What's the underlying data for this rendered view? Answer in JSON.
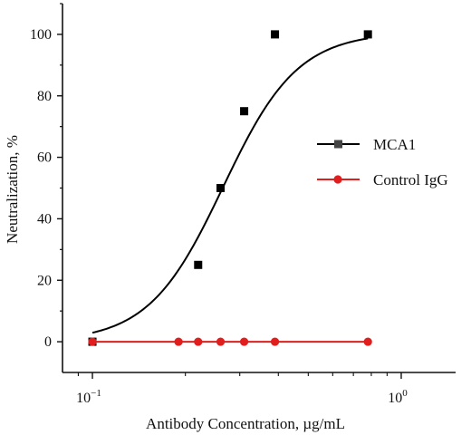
{
  "chart_data": {
    "type": "line",
    "xlabel": "Antibody Concentration, µg/mL",
    "ylabel": "Neutralization, %",
    "xscale": "log",
    "xlim": [
      0.08,
      1.5
    ],
    "ylim": [
      -10,
      110
    ],
    "x_ticks": [
      {
        "value": 0.1,
        "base": "10",
        "exp": "−1"
      },
      {
        "value": 1.0,
        "base": "10",
        "exp": "0"
      }
    ],
    "y_ticks": [
      0,
      20,
      40,
      60,
      80,
      100
    ],
    "grid": false,
    "legend_position": "right",
    "series": [
      {
        "name": "MCA1",
        "color": "#000000",
        "marker": "square",
        "points": [
          {
            "x": 0.1,
            "y": 0
          },
          {
            "x": 0.22,
            "y": 25
          },
          {
            "x": 0.26,
            "y": 50
          },
          {
            "x": 0.31,
            "y": 75
          },
          {
            "x": 0.39,
            "y": 100
          },
          {
            "x": 0.78,
            "y": 100
          }
        ],
        "fit": {
          "type": "sigmoid",
          "ec50": 0.265,
          "hill": 3.6,
          "bottom": 0,
          "top": 100.7,
          "x_range": [
            0.1,
            0.78
          ]
        }
      },
      {
        "name": "Control IgG",
        "color": "#e01e1e",
        "marker": "circle",
        "points": [
          {
            "x": 0.1,
            "y": 0
          },
          {
            "x": 0.19,
            "y": 0
          },
          {
            "x": 0.22,
            "y": 0
          },
          {
            "x": 0.26,
            "y": 0
          },
          {
            "x": 0.31,
            "y": 0
          },
          {
            "x": 0.39,
            "y": 0
          },
          {
            "x": 0.78,
            "y": 0
          }
        ]
      }
    ]
  }
}
